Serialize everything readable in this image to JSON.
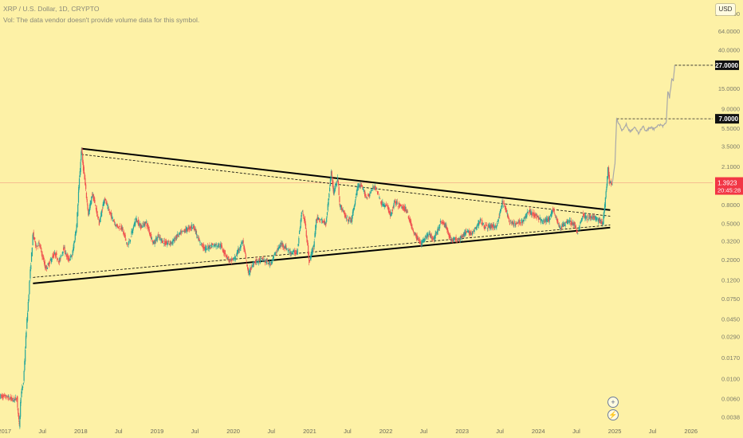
{
  "header": {
    "title": "XRP / U.S. Dollar, 1D, CRYPTO",
    "volume_note": "Vol: The data vendor doesn't provide volume data for this symbol."
  },
  "currency_button": "USD",
  "buttons": {
    "zoom_icon": "plus-circle-icon",
    "flash_icon": "lightning-icon",
    "zoom_glyph": "+",
    "flash_glyph": "⚡"
  },
  "colors": {
    "background": "#fdf1a6",
    "up": "#26a69a",
    "down": "#ef5350",
    "projection": "#a9a9a9",
    "trendline": "#000000"
  },
  "chart_data": {
    "type": "candlestick",
    "symbol": "XRP / U.S. Dollar",
    "interval": "1D",
    "scale": "log",
    "ylim": [
      0.0032,
      140
    ],
    "y_ticks": [
      100,
      64,
      40,
      27,
      15,
      9,
      7,
      5.5,
      3.5,
      2.1,
      1.3923,
      0.8,
      0.5,
      0.32,
      0.2,
      0.12,
      0.075,
      0.045,
      0.029,
      0.017,
      0.01,
      0.006,
      0.0038
    ],
    "y_tick_labels": [
      "100.0000",
      "64.0000",
      "40.0000",
      "27.0000",
      "15.0000",
      "9.0000",
      "7.0000",
      "5.5000",
      "3.5000",
      "2.1000",
      "1.3923",
      "0.8000",
      "0.5000",
      "0.3200",
      "0.2000",
      "0.1200",
      "0.0750",
      "0.0450",
      "0.0290",
      "0.0170",
      "0.0100",
      "0.0060",
      "0.0038"
    ],
    "x_ticks": [
      "2017-01-01",
      "2017-07-01",
      "2018-01-01",
      "2018-07-01",
      "2019-01-01",
      "2019-07-01",
      "2020-01-01",
      "2020-07-01",
      "2021-01-01",
      "2021-07-01",
      "2022-01-01",
      "2022-07-01",
      "2023-01-01",
      "2023-07-01",
      "2024-01-01",
      "2024-07-01",
      "2025-01-01",
      "2025-07-01",
      "2026-01-01"
    ],
    "x_tick_labels": [
      "2017",
      "Jul",
      "2018",
      "Jul",
      "2019",
      "Jul",
      "2020",
      "Jul",
      "2021",
      "Jul",
      "2022",
      "Jul",
      "2023",
      "Jul",
      "2024",
      "Jul",
      "2025",
      "Jul",
      "2026"
    ],
    "xlim": [
      "2016-12-10",
      "2026-04-15"
    ],
    "current_price": {
      "value": 1.3923,
      "label": "1.3923",
      "countdown": "20:45:28"
    },
    "targets": [
      {
        "value": 27,
        "label": "27.0000",
        "from": "2025-10-15"
      },
      {
        "value": 7,
        "label": "7.0000",
        "from": "2025-01-10"
      }
    ],
    "price_path": [
      [
        "2016-12-10",
        0.0064
      ],
      [
        "2017-01-15",
        0.0062
      ],
      [
        "2017-02-10",
        0.0058
      ],
      [
        "2017-03-01",
        0.006
      ],
      [
        "2017-03-12",
        0.003
      ],
      [
        "2017-03-20",
        0.0065
      ],
      [
        "2017-04-01",
        0.009
      ],
      [
        "2017-04-15",
        0.034
      ],
      [
        "2017-05-01",
        0.12
      ],
      [
        "2017-05-17",
        0.38
      ],
      [
        "2017-06-01",
        0.28
      ],
      [
        "2017-06-15",
        0.3
      ],
      [
        "2017-07-01",
        0.22
      ],
      [
        "2017-07-16",
        0.16
      ],
      [
        "2017-08-01",
        0.18
      ],
      [
        "2017-08-20",
        0.22
      ],
      [
        "2017-09-01",
        0.23
      ],
      [
        "2017-09-20",
        0.19
      ],
      [
        "2017-10-10",
        0.27
      ],
      [
        "2017-11-01",
        0.2
      ],
      [
        "2017-11-20",
        0.22
      ],
      [
        "2017-12-12",
        0.48
      ],
      [
        "2017-12-22",
        1.2
      ],
      [
        "2018-01-04",
        3.3
      ],
      [
        "2018-01-10",
        2.3
      ],
      [
        "2018-01-22",
        1.3
      ],
      [
        "2018-02-06",
        0.63
      ],
      [
        "2018-02-25",
        1.05
      ],
      [
        "2018-03-15",
        0.72
      ],
      [
        "2018-03-30",
        0.5
      ],
      [
        "2018-04-24",
        0.95
      ],
      [
        "2018-05-15",
        0.68
      ],
      [
        "2018-06-20",
        0.47
      ],
      [
        "2018-07-15",
        0.45
      ],
      [
        "2018-08-14",
        0.28
      ],
      [
        "2018-09-21",
        0.56
      ],
      [
        "2018-10-15",
        0.46
      ],
      [
        "2018-11-10",
        0.51
      ],
      [
        "2018-12-15",
        0.3
      ],
      [
        "2019-01-05",
        0.36
      ],
      [
        "2019-02-10",
        0.3
      ],
      [
        "2019-03-15",
        0.31
      ],
      [
        "2019-04-05",
        0.36
      ],
      [
        "2019-05-15",
        0.42
      ],
      [
        "2019-06-25",
        0.47
      ],
      [
        "2019-07-20",
        0.32
      ],
      [
        "2019-08-20",
        0.26
      ],
      [
        "2019-09-20",
        0.29
      ],
      [
        "2019-10-30",
        0.29
      ],
      [
        "2019-12-15",
        0.19
      ],
      [
        "2020-01-10",
        0.21
      ],
      [
        "2020-02-15",
        0.32
      ],
      [
        "2020-03-13",
        0.14
      ],
      [
        "2020-04-10",
        0.19
      ],
      [
        "2020-05-20",
        0.2
      ],
      [
        "2020-06-25",
        0.18
      ],
      [
        "2020-07-31",
        0.26
      ],
      [
        "2020-08-20",
        0.3
      ],
      [
        "2020-09-30",
        0.24
      ],
      [
        "2020-11-01",
        0.24
      ],
      [
        "2020-11-24",
        0.68
      ],
      [
        "2020-12-10",
        0.52
      ],
      [
        "2020-12-29",
        0.19
      ],
      [
        "2021-01-20",
        0.28
      ],
      [
        "2021-02-01",
        0.56
      ],
      [
        "2021-02-20",
        0.54
      ],
      [
        "2021-03-20",
        0.5
      ],
      [
        "2021-04-14",
        1.85
      ],
      [
        "2021-04-25",
        1.1
      ],
      [
        "2021-05-15",
        1.55
      ],
      [
        "2021-05-25",
        0.8
      ],
      [
        "2021-06-25",
        0.56
      ],
      [
        "2021-07-20",
        0.54
      ],
      [
        "2021-08-20",
        1.3
      ],
      [
        "2021-09-10",
        1.22
      ],
      [
        "2021-10-01",
        0.95
      ],
      [
        "2021-11-10",
        1.3
      ],
      [
        "2021-12-10",
        0.83
      ],
      [
        "2022-01-10",
        0.75
      ],
      [
        "2022-01-24",
        0.6
      ],
      [
        "2022-02-10",
        0.85
      ],
      [
        "2022-03-15",
        0.76
      ],
      [
        "2022-04-10",
        0.7
      ],
      [
        "2022-05-12",
        0.4
      ],
      [
        "2022-06-18",
        0.3
      ],
      [
        "2022-07-20",
        0.38
      ],
      [
        "2022-08-20",
        0.34
      ],
      [
        "2022-09-23",
        0.53
      ],
      [
        "2022-10-15",
        0.46
      ],
      [
        "2022-11-09",
        0.33
      ],
      [
        "2022-12-20",
        0.34
      ],
      [
        "2023-01-20",
        0.4
      ],
      [
        "2023-02-20",
        0.39
      ],
      [
        "2023-03-29",
        0.54
      ],
      [
        "2023-04-20",
        0.46
      ],
      [
        "2023-05-20",
        0.46
      ],
      [
        "2023-06-15",
        0.47
      ],
      [
        "2023-07-13",
        0.85
      ],
      [
        "2023-07-30",
        0.7
      ],
      [
        "2023-08-17",
        0.5
      ],
      [
        "2023-09-15",
        0.49
      ],
      [
        "2023-10-20",
        0.54
      ],
      [
        "2023-11-15",
        0.68
      ],
      [
        "2023-12-15",
        0.62
      ],
      [
        "2024-01-20",
        0.52
      ],
      [
        "2024-02-20",
        0.55
      ],
      [
        "2024-03-11",
        0.72
      ],
      [
        "2024-04-13",
        0.44
      ],
      [
        "2024-05-20",
        0.53
      ],
      [
        "2024-06-20",
        0.49
      ],
      [
        "2024-07-05",
        0.39
      ],
      [
        "2024-07-31",
        0.62
      ],
      [
        "2024-08-20",
        0.58
      ],
      [
        "2024-09-20",
        0.58
      ],
      [
        "2024-10-20",
        0.54
      ],
      [
        "2024-11-05",
        0.5
      ],
      [
        "2024-11-20",
        1.1
      ],
      [
        "2024-11-30",
        2.1
      ],
      [
        "2024-12-06",
        1.4
      ],
      [
        "2024-12-20",
        1.3923
      ]
    ],
    "projection_path": [
      [
        "2024-12-20",
        1.39
      ],
      [
        "2025-01-02",
        2.3
      ],
      [
        "2025-01-10",
        7.0
      ],
      [
        "2025-01-20",
        6.3
      ],
      [
        "2025-02-05",
        5.2
      ],
      [
        "2025-02-25",
        6.1
      ],
      [
        "2025-03-15",
        5.0
      ],
      [
        "2025-04-05",
        5.6
      ],
      [
        "2025-04-25",
        4.9
      ],
      [
        "2025-05-15",
        5.8
      ],
      [
        "2025-06-01",
        5.1
      ],
      [
        "2025-06-20",
        5.7
      ],
      [
        "2025-07-10",
        5.4
      ],
      [
        "2025-08-01",
        6.0
      ],
      [
        "2025-08-20",
        5.8
      ],
      [
        "2025-09-05",
        6.4
      ],
      [
        "2025-09-12",
        14
      ],
      [
        "2025-09-20",
        12
      ],
      [
        "2025-10-01",
        19
      ],
      [
        "2025-10-08",
        18
      ],
      [
        "2025-10-15",
        27
      ]
    ],
    "trendlines": [
      {
        "from": [
          "2018-01-04",
          3.3
        ],
        "to": [
          "2024-12-10",
          0.7
        ],
        "style": "solid"
      },
      {
        "from": [
          "2017-05-17",
          0.11
        ],
        "to": [
          "2024-12-10",
          0.45
        ],
        "style": "solid"
      },
      {
        "from": [
          "2018-01-04",
          2.85
        ],
        "to": [
          "2024-12-10",
          0.6
        ],
        "style": "dashed"
      },
      {
        "from": [
          "2017-05-17",
          0.128
        ],
        "to": [
          "2024-12-10",
          0.48
        ],
        "style": "dashed"
      }
    ]
  }
}
